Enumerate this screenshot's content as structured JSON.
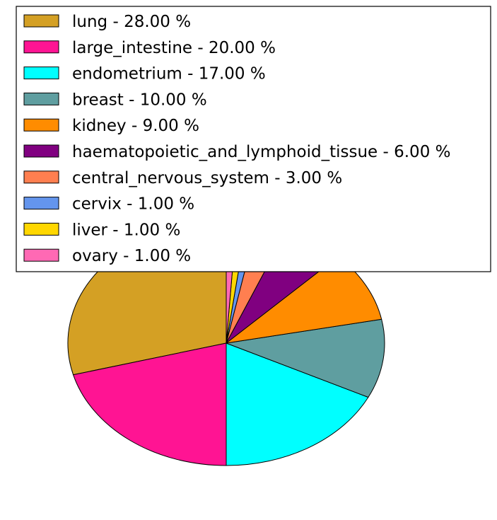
{
  "chart_data": {
    "type": "pie",
    "title": "",
    "legend_position": "top",
    "slices": [
      {
        "label": "lung - 28.00 %",
        "category": "lung",
        "value": 28.0,
        "color": "#D4A024"
      },
      {
        "label": "large_intestine - 20.00 %",
        "category": "large_intestine",
        "value": 20.0,
        "color": "#FF1493"
      },
      {
        "label": "endometrium - 17.00 %",
        "category": "endometrium",
        "value": 17.0,
        "color": "#00FFFF"
      },
      {
        "label": "breast - 10.00 %",
        "category": "breast",
        "value": 10.0,
        "color": "#5F9EA0"
      },
      {
        "label": "kidney - 9.00 %",
        "category": "kidney",
        "value": 9.0,
        "color": "#FF8C00"
      },
      {
        "label": "haematopoietic_and_lymphoid_tissue - 6.00 %",
        "category": "haematopoietic_and_lymphoid_tissue",
        "value": 6.0,
        "color": "#800080"
      },
      {
        "label": "central_nervous_system - 3.00 %",
        "category": "central_nervous_system",
        "value": 3.0,
        "color": "#FF7F50"
      },
      {
        "label": "cervix - 1.00 %",
        "category": "cervix",
        "value": 1.0,
        "color": "#6495ED"
      },
      {
        "label": "liver - 1.00 %",
        "category": "liver",
        "value": 1.0,
        "color": "#FFD700"
      },
      {
        "label": "ovary - 1.00 %",
        "category": "ovary",
        "value": 1.0,
        "color": "#FF69B4"
      }
    ]
  }
}
